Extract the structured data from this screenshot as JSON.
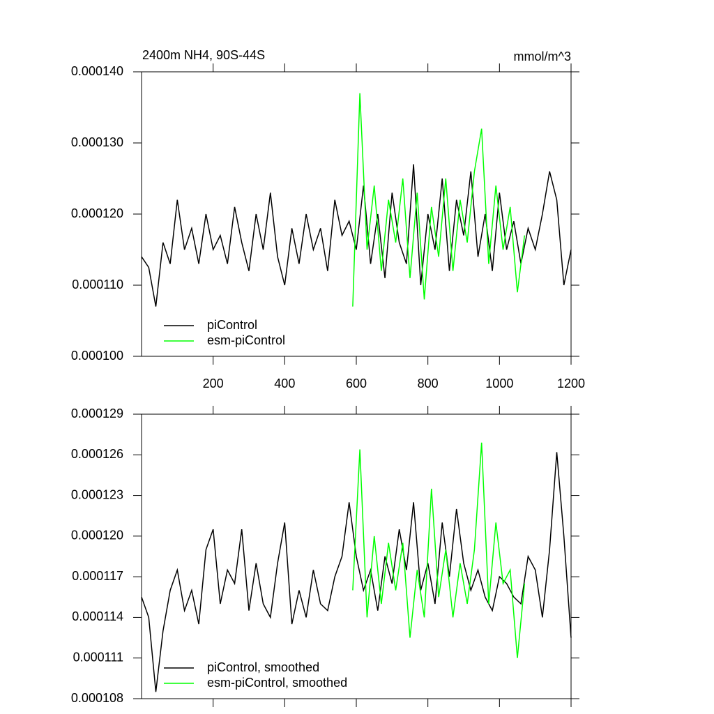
{
  "chart_data": [
    {
      "type": "line",
      "title": "2400m NH4, 90S-44S",
      "units": "mmol/m^3",
      "legend": "lower left",
      "xlim": [
        0,
        1200
      ],
      "xticks": [
        200,
        400,
        600,
        800,
        1000,
        1200
      ],
      "ylim": [
        0.0001,
        0.00014
      ],
      "yticks": [
        {
          "value": 0.0001,
          "label": "0.000100"
        },
        {
          "value": 0.00011,
          "label": "0.000110"
        },
        {
          "value": 0.00012,
          "label": "0.000120"
        },
        {
          "value": 0.00013,
          "label": "0.000130"
        },
        {
          "value": 0.00014,
          "label": "0.000140"
        }
      ],
      "series": [
        {
          "name": "piControl",
          "color": "#000000",
          "x": [
            0,
            20,
            40,
            60,
            80,
            100,
            120,
            140,
            160,
            180,
            200,
            220,
            240,
            260,
            280,
            300,
            320,
            340,
            360,
            380,
            400,
            420,
            440,
            460,
            480,
            500,
            520,
            540,
            560,
            580,
            600,
            620,
            640,
            660,
            680,
            700,
            720,
            740,
            760,
            780,
            800,
            820,
            840,
            860,
            880,
            900,
            920,
            940,
            960,
            980,
            1000,
            1020,
            1040,
            1060,
            1080,
            1100,
            1120,
            1140,
            1160,
            1180,
            1200
          ],
          "values": [
            0.000114,
            0.0001125,
            0.000107,
            0.000116,
            0.000113,
            0.000122,
            0.000115,
            0.000118,
            0.000113,
            0.00012,
            0.000115,
            0.000117,
            0.000113,
            0.000121,
            0.000116,
            0.000112,
            0.00012,
            0.000115,
            0.000123,
            0.000114,
            0.00011,
            0.000118,
            0.000113,
            0.00012,
            0.000115,
            0.000118,
            0.000112,
            0.000122,
            0.000117,
            0.000119,
            0.000115,
            0.000124,
            0.000113,
            0.00012,
            0.000111,
            0.000123,
            0.000116,
            0.000113,
            0.000127,
            0.00011,
            0.00012,
            0.000115,
            0.000125,
            0.000112,
            0.000122,
            0.000117,
            0.000126,
            0.000114,
            0.00012,
            0.000112,
            0.000123,
            0.000115,
            0.000119,
            0.000113,
            0.000118,
            0.000115,
            0.00012,
            0.000126,
            0.000122,
            0.00011,
            0.000115
          ]
        },
        {
          "name": "esm-piControl",
          "color": "#00ff00",
          "x": [
            590,
            610,
            630,
            650,
            670,
            690,
            710,
            730,
            750,
            770,
            790,
            810,
            830,
            850,
            870,
            890,
            910,
            930,
            950,
            970,
            990,
            1010,
            1030,
            1050,
            1070
          ],
          "values": [
            0.000107,
            0.000137,
            0.000115,
            0.000124,
            0.000112,
            0.000122,
            0.000116,
            0.000125,
            0.000111,
            0.000123,
            0.000108,
            0.000121,
            0.000114,
            0.000125,
            0.000112,
            0.000122,
            0.000116,
            0.000126,
            0.000132,
            0.000113,
            0.000124,
            0.000115,
            0.000121,
            0.000109,
            0.000117
          ]
        }
      ]
    },
    {
      "type": "line",
      "legend": "lower left",
      "xlim": [
        0,
        1200
      ],
      "xticks": [
        200,
        400,
        600,
        800,
        1000,
        1200
      ],
      "ylim": [
        0.000108,
        0.000129
      ],
      "yticks": [
        {
          "value": 0.000108,
          "label": "0.000108"
        },
        {
          "value": 0.000111,
          "label": "0.000111"
        },
        {
          "value": 0.000114,
          "label": "0.000114"
        },
        {
          "value": 0.000117,
          "label": "0.000117"
        },
        {
          "value": 0.00012,
          "label": "0.000120"
        },
        {
          "value": 0.000123,
          "label": "0.000123"
        },
        {
          "value": 0.000126,
          "label": "0.000126"
        },
        {
          "value": 0.000129,
          "label": "0.000129"
        }
      ],
      "series": [
        {
          "name": "piControl, smoothed",
          "color": "#000000",
          "x": [
            0,
            20,
            40,
            60,
            80,
            100,
            120,
            140,
            160,
            180,
            200,
            220,
            240,
            260,
            280,
            300,
            320,
            340,
            360,
            380,
            400,
            420,
            440,
            460,
            480,
            500,
            520,
            540,
            560,
            580,
            600,
            620,
            640,
            660,
            680,
            700,
            720,
            740,
            760,
            780,
            800,
            820,
            840,
            860,
            880,
            900,
            920,
            940,
            960,
            980,
            1000,
            1020,
            1040,
            1060,
            1080,
            1100,
            1120,
            1140,
            1160,
            1180,
            1200
          ],
          "values": [
            0.0001155,
            0.000114,
            0.0001085,
            0.000113,
            0.000116,
            0.0001175,
            0.0001145,
            0.000116,
            0.0001135,
            0.000119,
            0.0001205,
            0.000115,
            0.0001175,
            0.0001165,
            0.0001205,
            0.0001145,
            0.000118,
            0.000115,
            0.000114,
            0.000118,
            0.000121,
            0.0001135,
            0.000116,
            0.000114,
            0.0001175,
            0.000115,
            0.0001145,
            0.000117,
            0.0001185,
            0.0001225,
            0.0001185,
            0.000116,
            0.0001175,
            0.0001145,
            0.0001185,
            0.0001165,
            0.0001205,
            0.0001175,
            0.0001225,
            0.000116,
            0.000118,
            0.000115,
            0.000121,
            0.000117,
            0.000122,
            0.000118,
            0.000116,
            0.0001175,
            0.0001155,
            0.0001145,
            0.000117,
            0.0001165,
            0.0001155,
            0.000115,
            0.0001185,
            0.0001175,
            0.000114,
            0.000119,
            0.0001262,
            0.00012,
            0.0001125
          ]
        },
        {
          "name": "esm-piControl, smoothed",
          "color": "#00ff00",
          "x": [
            590,
            610,
            630,
            650,
            670,
            690,
            710,
            730,
            750,
            770,
            790,
            810,
            830,
            850,
            870,
            890,
            910,
            930,
            950,
            970,
            990,
            1010,
            1030,
            1050,
            1070
          ],
          "values": [
            0.000116,
            0.0001264,
            0.000114,
            0.00012,
            0.000115,
            0.0001195,
            0.000116,
            0.0001195,
            0.0001125,
            0.0001175,
            0.000114,
            0.0001235,
            0.0001155,
            0.000119,
            0.000114,
            0.000118,
            0.000115,
            0.000119,
            0.0001269,
            0.000115,
            0.000121,
            0.0001165,
            0.0001175,
            0.000111,
            0.0001165
          ]
        }
      ]
    }
  ]
}
